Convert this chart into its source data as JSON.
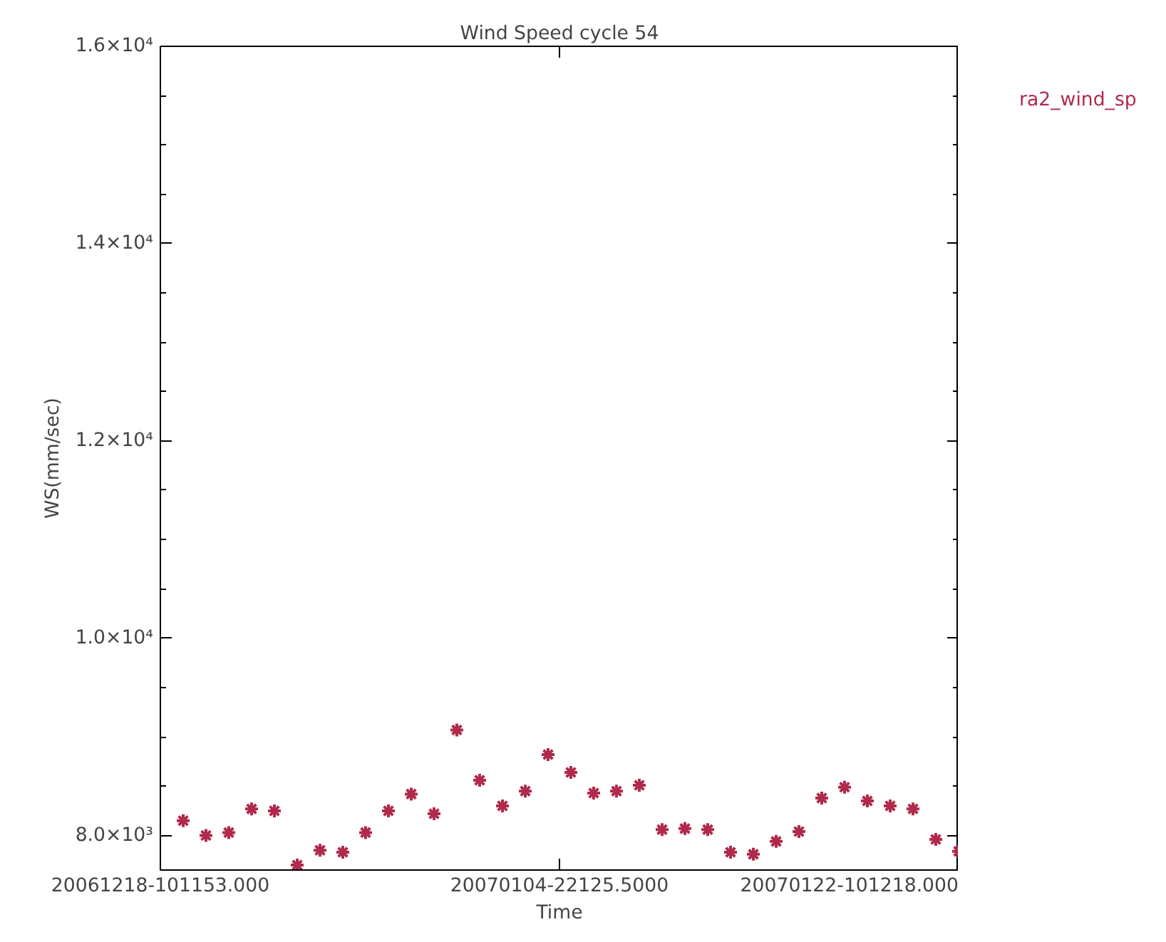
{
  "chart_data": {
    "type": "scatter",
    "title": "Wind Speed cycle 54",
    "xlabel": "Time",
    "ylabel": "WS(mm/sec)",
    "x": [
      "2006-12-19T10:12",
      "2006-12-20T10:12",
      "2006-12-21T10:12",
      "2006-12-22T10:12",
      "2006-12-23T10:12",
      "2006-12-24T10:12",
      "2006-12-25T10:12",
      "2006-12-26T10:12",
      "2006-12-27T10:12",
      "2006-12-28T10:12",
      "2006-12-29T10:12",
      "2006-12-30T10:12",
      "2006-12-31T10:12",
      "2007-01-01T10:12",
      "2007-01-02T10:12",
      "2007-01-03T10:12",
      "2007-01-04T10:12",
      "2007-01-05T10:12",
      "2007-01-06T10:12",
      "2007-01-07T10:12",
      "2007-01-08T10:12",
      "2007-01-09T10:12",
      "2007-01-10T10:12",
      "2007-01-11T10:12",
      "2007-01-12T10:12",
      "2007-01-13T10:12",
      "2007-01-14T10:12",
      "2007-01-15T10:12",
      "2007-01-16T10:12",
      "2007-01-17T10:12",
      "2007-01-18T10:12",
      "2007-01-19T10:12",
      "2007-01-20T10:12",
      "2007-01-21T10:12",
      "2007-01-22T10:12"
    ],
    "series": [
      {
        "name": "ra2_wind_sp",
        "color": "#b02a4c",
        "values": [
          8150,
          8000,
          8030,
          8270,
          8250,
          7700,
          7850,
          7830,
          8030,
          8250,
          8420,
          8220,
          9070,
          8560,
          8300,
          8450,
          8820,
          8640,
          8430,
          8450,
          8510,
          8060,
          8070,
          8060,
          7830,
          7810,
          7940,
          8040,
          8380,
          8490,
          8350,
          8300,
          8270,
          7960,
          7840
        ]
      }
    ],
    "xlim": [
      "2006-12-18T10:12",
      "2007-01-22T10:12"
    ],
    "xticks": [
      {
        "value": "2006-12-18T10:12",
        "label": "20061218-101153.000"
      },
      {
        "value": "2007-01-04T22:12",
        "label": "20070104-22125.5000"
      },
      {
        "value": "2007-01-22T10:12",
        "label": "20070122-101218.000"
      }
    ],
    "ylim": [
      7650,
      16000
    ],
    "yticks": [
      {
        "value": 8000,
        "label": "8.0×10³"
      },
      {
        "value": 10000,
        "label": "1.0×10⁴"
      },
      {
        "value": 12000,
        "label": "1.2×10⁴"
      },
      {
        "value": 14000,
        "label": "1.4×10⁴"
      },
      {
        "value": 16000,
        "label": "1.6×10⁴"
      }
    ],
    "grid": false,
    "legend": "top right",
    "marker": "cross"
  }
}
